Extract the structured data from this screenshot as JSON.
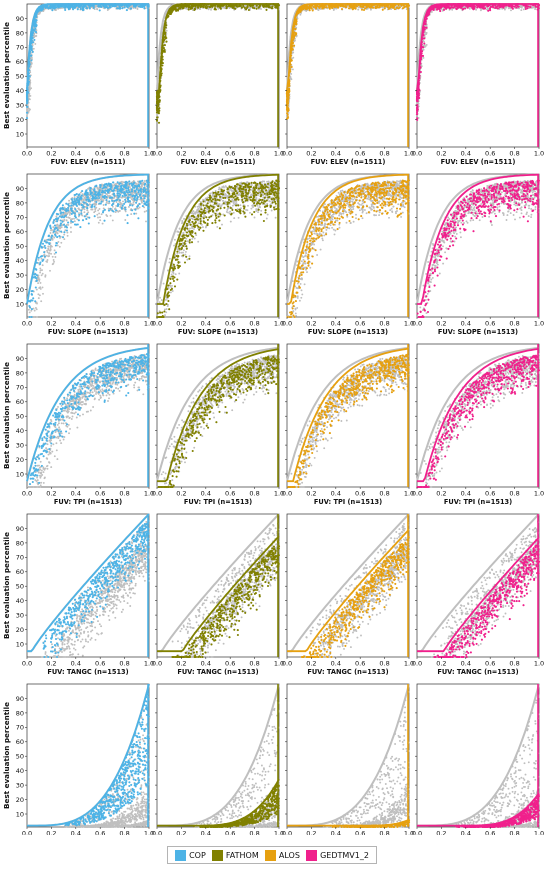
{
  "chart_data": {
    "type": "scatter",
    "ylabel": "Best evaluation percentile",
    "x_ticks": [
      "0.0",
      "0.2",
      "0.4",
      "0.6",
      "0.8",
      "1.0"
    ],
    "y_ticks": [
      "10",
      "20",
      "30",
      "40",
      "50",
      "60",
      "70",
      "80",
      "90"
    ],
    "xlim": [
      0,
      1
    ],
    "ylim": [
      1,
      100
    ],
    "background_color": "#bfbfbf",
    "columns": [
      {
        "name": "COP",
        "color": "#4db3e6"
      },
      {
        "name": "FATHOM",
        "color": "#808000"
      },
      {
        "name": "ALOS",
        "color": "#e6a010"
      },
      {
        "name": "GEDTMV1_2",
        "color": "#f0208c"
      }
    ],
    "rows": [
      {
        "xlabel": "FUV: ELEV  (n=1511)",
        "shape": "elev"
      },
      {
        "xlabel": "FUV: SLOPE  (n=1513)",
        "shape": "slope"
      },
      {
        "xlabel": "FUV: TPI  (n=1513)",
        "shape": "tpi"
      },
      {
        "xlabel": "FUV: TANGC  (n=1513)",
        "shape": "tangc"
      },
      {
        "xlabel": "FUV: PLANC  (n=1513)",
        "shape": "planc"
      }
    ]
  },
  "legend": {
    "items": [
      {
        "label": "COP",
        "color": "#4db3e6"
      },
      {
        "label": "FATHOM",
        "color": "#808000"
      },
      {
        "label": "ALOS",
        "color": "#e6a010"
      },
      {
        "label": "GEDTMV1_2",
        "color": "#f0208c"
      }
    ]
  }
}
